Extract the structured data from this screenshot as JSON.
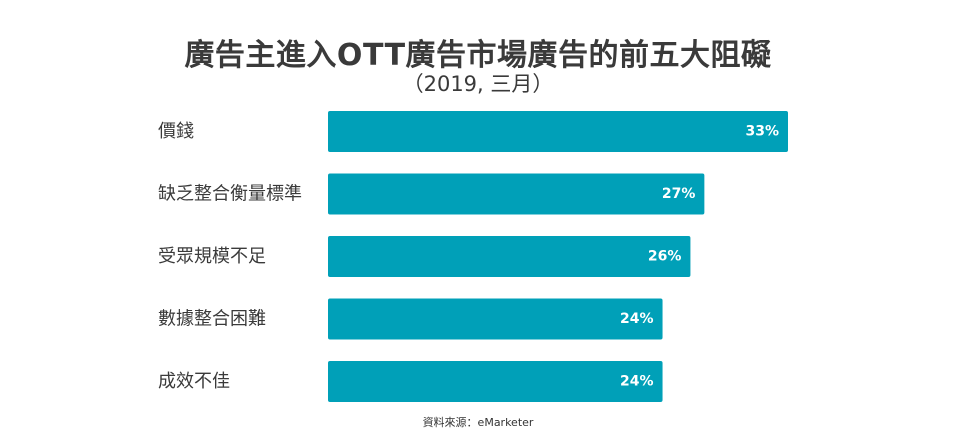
{
  "chart_data": {
    "type": "bar",
    "orientation": "horizontal",
    "title": "廣告主進入OTT廣告市場廣告的前五大阻礙",
    "subtitle": "（2019, 三月）",
    "categories": [
      "價錢",
      "缺乏整合衡量標準",
      "受眾規模不足",
      "數據整合困難",
      "成效不佳"
    ],
    "values": [
      33,
      27,
      26,
      24,
      24
    ],
    "value_labels": [
      "33%",
      "27%",
      "26%",
      "24%",
      "24%"
    ],
    "unit": "%",
    "xlim": [
      0,
      33
    ],
    "grid": false,
    "legend": "none",
    "bar_color": "#00a0b8",
    "value_label_color": "#ffffff",
    "source": "資料來源：eMarketer"
  }
}
